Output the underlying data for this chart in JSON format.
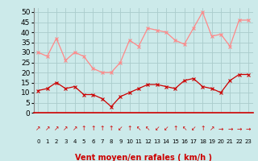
{
  "hours": [
    0,
    1,
    2,
    3,
    4,
    5,
    6,
    7,
    8,
    9,
    10,
    11,
    12,
    13,
    14,
    15,
    16,
    17,
    18,
    19,
    20,
    21,
    22,
    23
  ],
  "wind_avg": [
    11,
    12,
    15,
    12,
    13,
    9,
    9,
    7,
    3,
    8,
    10,
    12,
    14,
    14,
    13,
    12,
    16,
    17,
    13,
    12,
    10,
    16,
    19,
    19
  ],
  "wind_gust": [
    30,
    28,
    37,
    26,
    30,
    28,
    22,
    20,
    20,
    25,
    36,
    33,
    42,
    41,
    40,
    36,
    34,
    42,
    50,
    38,
    39,
    33,
    46,
    46
  ],
  "bg_color": "#cceaea",
  "grid_color": "#aacccc",
  "avg_color": "#cc0000",
  "gust_color": "#ff8888",
  "xlabel": "Vent moyen/en rafales ( km/h )",
  "xlabel_color": "#cc0000",
  "xlabel_fontsize": 7,
  "ylim": [
    0,
    52
  ],
  "yticks": [
    0,
    5,
    10,
    15,
    20,
    25,
    30,
    35,
    40,
    45,
    50
  ],
  "tick_fontsize": 6.5,
  "hour_fontsize": 5.5,
  "arrow_symbols": [
    "↗",
    "↗",
    "↗",
    "↗",
    "↗",
    "↑",
    "↑",
    "↑",
    "↑",
    "↙",
    "↑",
    "↖",
    "↖",
    "↙",
    "↙",
    "↑",
    "↖",
    "↙",
    "↑",
    "↗",
    "→",
    "→",
    "→",
    "→"
  ],
  "spine_color": "#cc0000"
}
